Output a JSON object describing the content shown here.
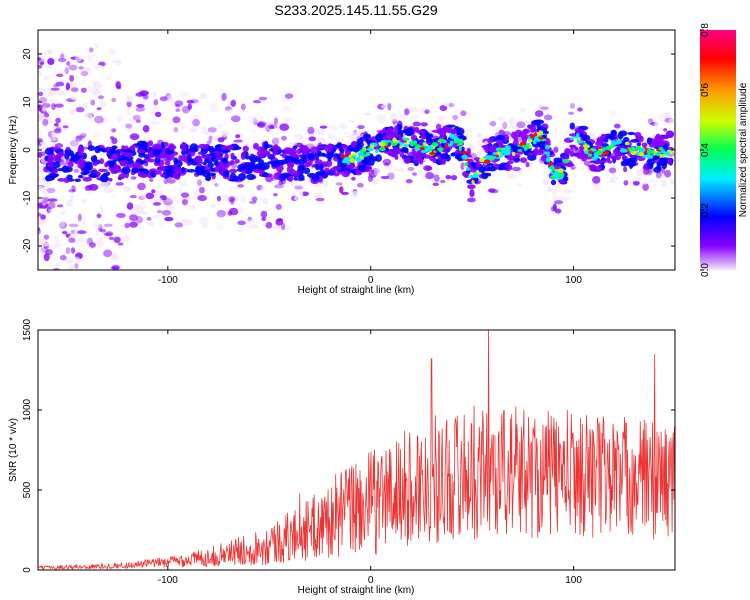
{
  "title": "S233.2025.145.11.55.G29",
  "chart_data": [
    {
      "type": "heatmap",
      "name": "spectrogram",
      "xlabel": "Height of straight line (km)",
      "ylabel": "Frequency (Hz)",
      "xlim": [
        -164,
        150
      ],
      "ylim": [
        -25,
        25
      ],
      "xticks": [
        -100,
        0,
        100
      ],
      "yticks": [
        -20,
        -10,
        0,
        10,
        20
      ],
      "colorbar": {
        "label": "Normalized spectral amplitude",
        "range": [
          0,
          0.8
        ],
        "ticks": [
          "0.0",
          "0.2",
          "0.4",
          "0.6",
          "0.8"
        ],
        "colors": [
          "#f2e6fb",
          "#8800ff",
          "#0000ff",
          "#00eeff",
          "#00ff55",
          "#ccff00",
          "#ff9900",
          "#ff0000",
          "#ff0088"
        ]
      },
      "ridge": {
        "x": [
          -150,
          -130,
          -110,
          -90,
          -70,
          -50,
          -30,
          -10,
          0,
          10,
          20,
          30,
          40,
          45,
          50,
          55,
          60,
          70,
          80,
          85,
          90,
          95,
          100,
          105,
          110,
          120,
          130,
          140,
          148
        ],
        "y": [
          -3,
          -3,
          -2,
          -2,
          -3,
          -2,
          -3,
          -2,
          0,
          2,
          1,
          0,
          2,
          1,
          -6,
          -3,
          -1,
          0,
          2,
          3,
          -5,
          -5,
          3,
          1,
          -1,
          1,
          0,
          -1,
          0
        ]
      }
    },
    {
      "type": "line",
      "name": "snr",
      "xlabel": "Height of straight line (km)",
      "ylabel": "SNR (10 * v/v)",
      "xlim": [
        -164,
        150
      ],
      "ylim": [
        0,
        1500
      ],
      "xticks": [
        -100,
        0,
        100
      ],
      "yticks": [
        0,
        500,
        1000,
        1500
      ],
      "color": "#ee3333",
      "envelope": {
        "x": [
          -164,
          -140,
          -120,
          -100,
          -80,
          -60,
          -45,
          -35,
          -25,
          -20,
          -15,
          -10,
          0,
          10,
          20,
          30,
          40,
          50,
          60,
          70,
          80,
          90,
          100,
          110,
          120,
          130,
          140,
          150
        ],
        "mean": [
          15,
          20,
          30,
          50,
          80,
          130,
          180,
          230,
          280,
          320,
          350,
          380,
          420,
          470,
          520,
          560,
          590,
          610,
          620,
          620,
          610,
          600,
          610,
          600,
          590,
          580,
          570,
          560
        ],
        "amp": [
          10,
          15,
          20,
          35,
          60,
          100,
          150,
          180,
          220,
          250,
          280,
          300,
          330,
          360,
          380,
          400,
          410,
          420,
          420,
          420,
          410,
          400,
          400,
          400,
          390,
          380,
          380,
          370
        ]
      },
      "peaks": [
        {
          "x": -35,
          "y": 480
        },
        {
          "x": 30,
          "y": 1320
        },
        {
          "x": 58,
          "y": 1500
        },
        {
          "x": 140,
          "y": 1350
        }
      ]
    }
  ]
}
